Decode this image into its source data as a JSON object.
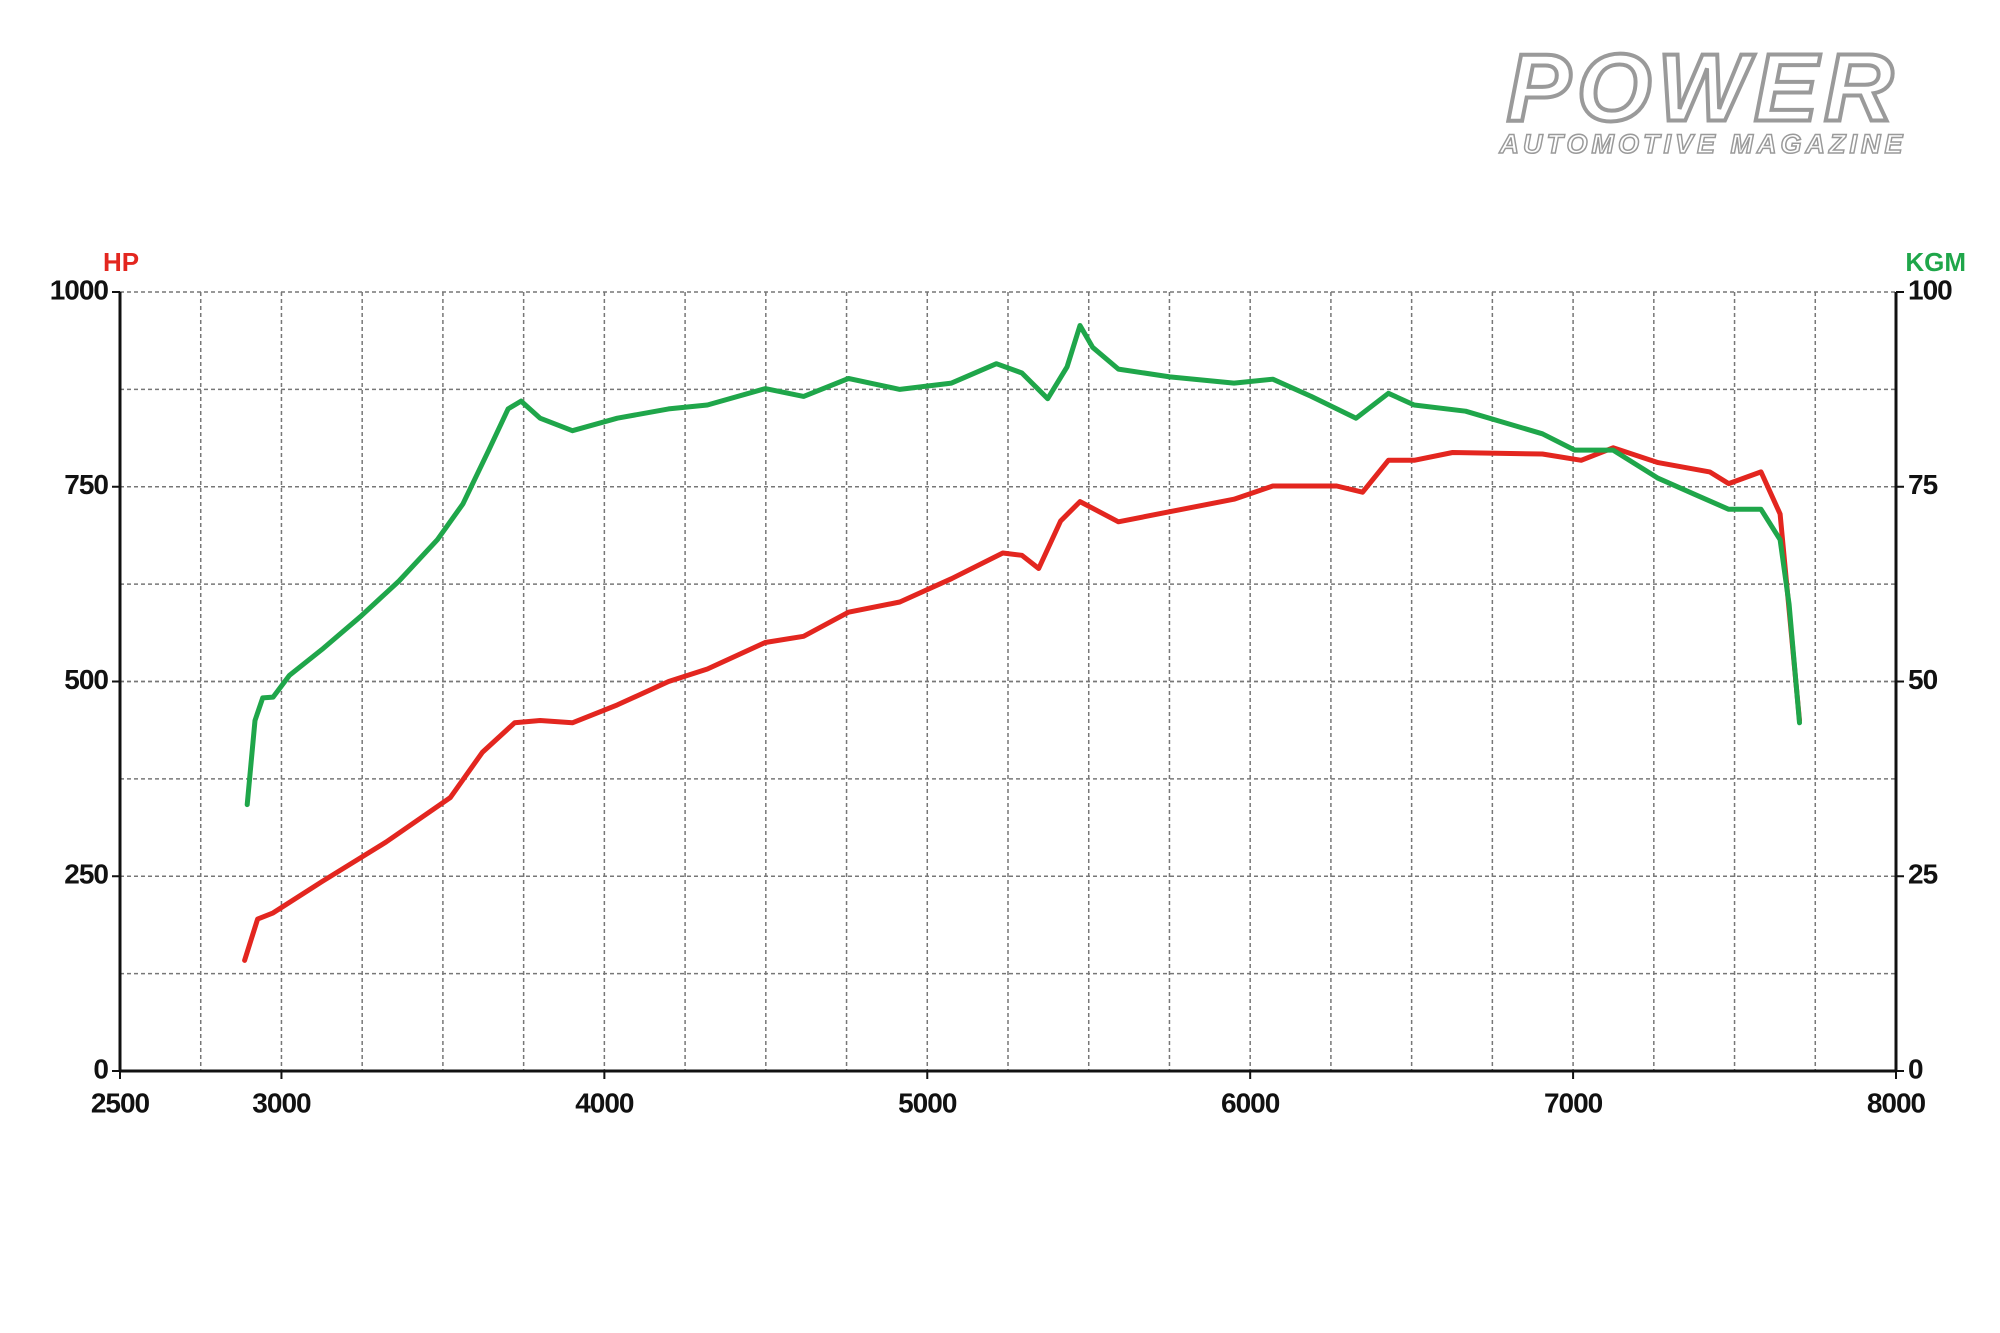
{
  "chart_data": {
    "type": "line",
    "logo": {
      "title": "POWER",
      "subtitle": "AUTOMOTIVE MAGAZINE"
    },
    "y_label": "HP",
    "y2_label": "KGM",
    "xlim": [
      2500,
      8000
    ],
    "xticks": [
      2500,
      3000,
      4000,
      5000,
      6000,
      7000,
      8000
    ],
    "ylim": [
      0,
      1000
    ],
    "yticks": [
      0,
      250,
      500,
      750,
      1000
    ],
    "y2lim": [
      0,
      100
    ],
    "y2ticks": [
      0,
      25,
      50,
      75,
      100
    ],
    "xgrid": [
      2750,
      3000,
      3250,
      3500,
      3750,
      4000,
      4250,
      4500,
      4750,
      5000,
      5250,
      5500,
      5750,
      6000,
      6250,
      6500,
      6750,
      7000,
      7250,
      7500,
      7750
    ],
    "ygrid": [
      125,
      250,
      375,
      500,
      625,
      750,
      875
    ],
    "grid": true,
    "series": [
      {
        "color": "#e3261f",
        "axis": "y",
        "x": [
          2886,
          2926,
          2974,
          3125,
          3324,
          3523,
          3622,
          3722,
          3801,
          3901,
          4040,
          4199,
          4319,
          4498,
          4617,
          4756,
          4915,
          5075,
          5234,
          5293,
          5345,
          5413,
          5473,
          5592,
          5751,
          5950,
          6070,
          6268,
          6348,
          6428,
          6508,
          6627,
          6905,
          7025,
          7124,
          7263,
          7423,
          7482,
          7582,
          7641,
          7701
        ],
        "values": [
          142,
          195,
          203,
          243,
          294,
          351,
          409,
          447,
          450,
          447,
          470,
          500,
          516,
          550,
          558,
          589,
          602,
          632,
          665,
          662,
          645,
          706,
          731,
          705,
          718,
          734,
          751,
          751,
          743,
          784,
          784,
          794,
          792,
          784,
          800,
          781,
          769,
          754,
          769,
          715,
          450
        ]
      },
      {
        "color": "#1fa64a",
        "axis": "y2",
        "x": [
          2894,
          2918,
          2942,
          2974,
          3025,
          3125,
          3244,
          3364,
          3483,
          3562,
          3642,
          3702,
          3742,
          3801,
          3901,
          4040,
          4199,
          4319,
          4498,
          4617,
          4756,
          4915,
          5075,
          5214,
          5293,
          5373,
          5433,
          5473,
          5512,
          5592,
          5751,
          5950,
          6070,
          6189,
          6328,
          6428,
          6508,
          6667,
          6905,
          7005,
          7124,
          7263,
          7383,
          7482,
          7582,
          7641,
          7669,
          7701
        ],
        "values": [
          34.2,
          45.0,
          47.9,
          48.0,
          50.8,
          54.1,
          58.3,
          62.9,
          68.2,
          72.8,
          79.7,
          85.0,
          86.0,
          83.8,
          82.2,
          83.8,
          85.0,
          85.5,
          87.6,
          86.6,
          88.9,
          87.5,
          88.3,
          90.8,
          89.6,
          86.3,
          90.4,
          95.7,
          92.9,
          90.1,
          89.1,
          88.3,
          88.8,
          86.6,
          83.8,
          87.0,
          85.5,
          84.7,
          81.8,
          79.7,
          79.7,
          76.1,
          73.9,
          72.1,
          72.1,
          68.2,
          59.9,
          44.7
        ]
      }
    ]
  }
}
